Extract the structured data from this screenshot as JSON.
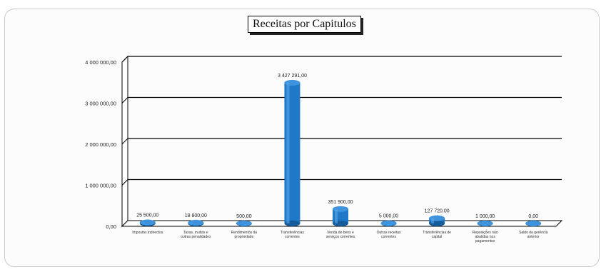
{
  "chart_data": {
    "type": "bar",
    "title": "Receitas por Capitulos",
    "categories": [
      "Impostos indirectos",
      "Taxas, multas e outras penalidades",
      "Rendimentos da propriedade",
      "Transferências correntes",
      "Venda de bens e serviços correntes",
      "Outras receitas correntes",
      "Transferências de capital",
      "Reposições não abatidas nos pagamentos",
      "Saldo da gerência anterior"
    ],
    "values": [
      25500,
      18800,
      500,
      3427291,
      351900,
      5000,
      127720,
      1000,
      0
    ],
    "value_labels": [
      "25 500,00",
      "18 800,00",
      "500,00",
      "3 427 291,00",
      "351 900,00",
      "5 000,00",
      "127 720,00",
      "1 000,00",
      "0,00"
    ],
    "y_ticks": [
      "0,00",
      "1 000 000,00",
      "2 000 000,00",
      "3 000 000,00",
      "4 000 000,00"
    ],
    "ylim": [
      0,
      4000000
    ],
    "grid": true,
    "xlabel": "",
    "ylabel": "",
    "bar_color": "#1f78c8"
  }
}
